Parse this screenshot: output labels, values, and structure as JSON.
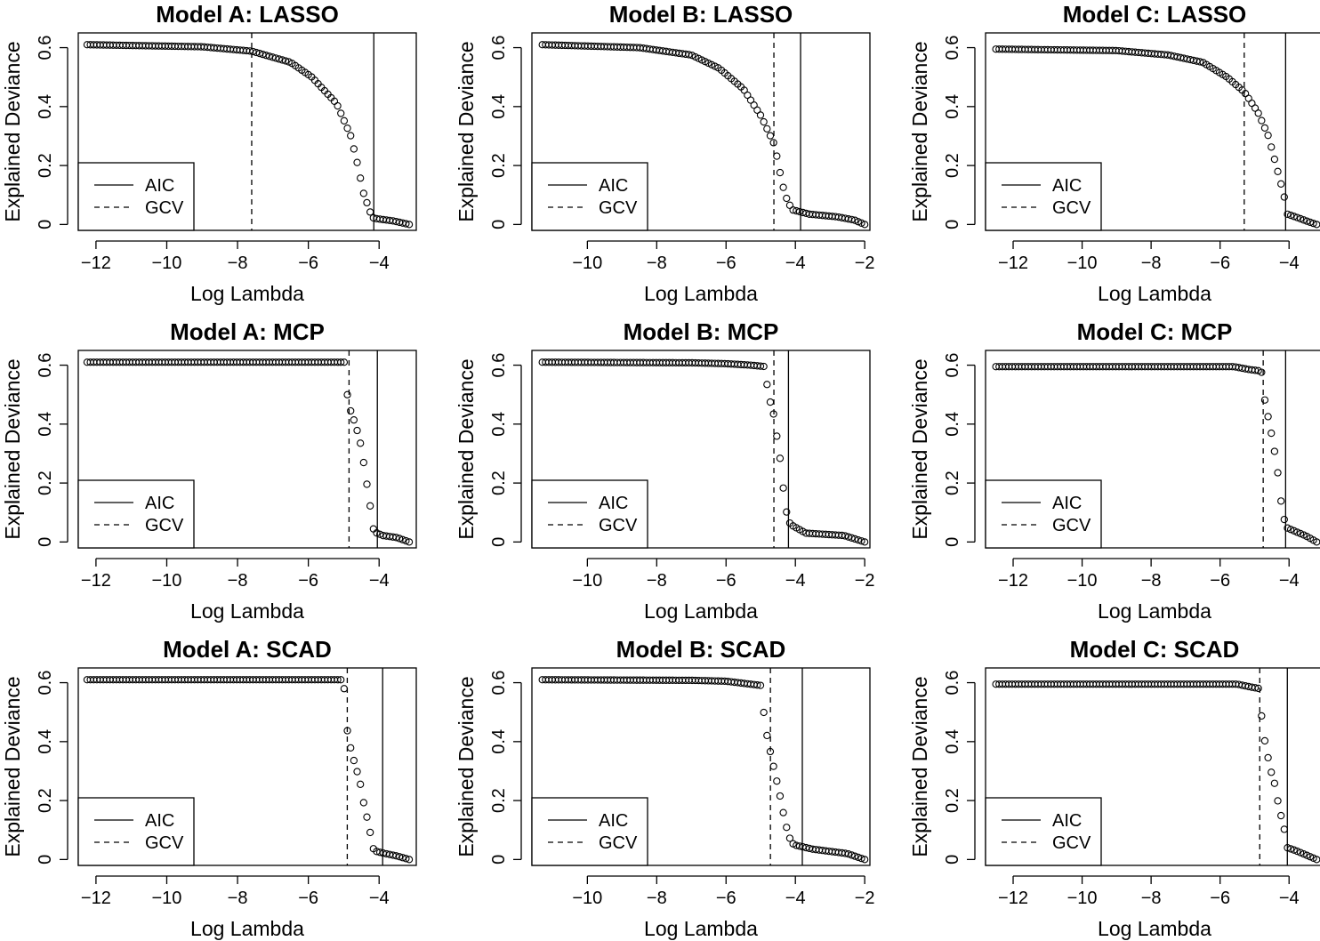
{
  "chart_data": [
    {
      "type": "scatter",
      "title": "Model A:  LASSO",
      "xlabel": "Log Lambda",
      "ylabel": "Explained Deviance",
      "xlim": [
        -12.5,
        -2.95
      ],
      "ylim": [
        -0.02,
        0.65
      ],
      "xticks": [
        -12,
        -10,
        -8,
        -6,
        -4
      ],
      "yticks": [
        0.0,
        0.2,
        0.4,
        0.6
      ],
      "x_range": [
        -12.25,
        -3.15
      ],
      "n_points": 100,
      "curve": [
        [
          -12.25,
          0.61
        ],
        [
          -9.0,
          0.603
        ],
        [
          -7.6,
          0.588
        ],
        [
          -6.5,
          0.55
        ],
        [
          -5.9,
          0.5
        ],
        [
          -5.2,
          0.41
        ],
        [
          -4.8,
          0.3
        ],
        [
          -4.6,
          0.2
        ],
        [
          -4.45,
          0.11
        ],
        [
          -4.2,
          0.024
        ],
        [
          -4.1,
          0.02
        ],
        [
          -3.6,
          0.012
        ],
        [
          -3.15,
          0.0
        ]
      ],
      "aic": -4.15,
      "gcv": -7.6,
      "legend": [
        {
          "label": "AIC",
          "style": "solid"
        },
        {
          "label": "GCV",
          "style": "dashed"
        }
      ],
      "legend_position": "bottom-left"
    },
    {
      "type": "scatter",
      "title": "Model B:  LASSO",
      "xlabel": "Log Lambda",
      "ylabel": "Explained Deviance",
      "xlim": [
        -11.6,
        -1.85
      ],
      "ylim": [
        -0.02,
        0.65
      ],
      "xticks": [
        -10,
        -8,
        -6,
        -4,
        -2
      ],
      "yticks": [
        0.0,
        0.2,
        0.4,
        0.6
      ],
      "x_range": [
        -11.3,
        -2.0
      ],
      "n_points": 100,
      "curve": [
        [
          -11.3,
          0.61
        ],
        [
          -8.5,
          0.6
        ],
        [
          -7.0,
          0.575
        ],
        [
          -6.2,
          0.53
        ],
        [
          -5.5,
          0.46
        ],
        [
          -5.0,
          0.37
        ],
        [
          -4.6,
          0.27
        ],
        [
          -4.45,
          0.18
        ],
        [
          -4.3,
          0.1
        ],
        [
          -4.1,
          0.05
        ],
        [
          -3.6,
          0.035
        ],
        [
          -2.8,
          0.026
        ],
        [
          -2.3,
          0.015
        ],
        [
          -2.0,
          0.0
        ]
      ],
      "aic": -3.85,
      "gcv": -4.62,
      "legend": [
        {
          "label": "AIC",
          "style": "solid"
        },
        {
          "label": "GCV",
          "style": "dashed"
        }
      ],
      "legend_position": "bottom-left"
    },
    {
      "type": "scatter",
      "title": "Model C:  LASSO",
      "xlabel": "Log Lambda",
      "ylabel": "Explained Deviance",
      "xlim": [
        -12.8,
        -3.0
      ],
      "ylim": [
        -0.02,
        0.65
      ],
      "xticks": [
        -12,
        -10,
        -8,
        -6,
        -4
      ],
      "yticks": [
        0.0,
        0.2,
        0.4,
        0.6
      ],
      "x_range": [
        -12.5,
        -3.2
      ],
      "n_points": 100,
      "curve": [
        [
          -12.5,
          0.595
        ],
        [
          -9.0,
          0.59
        ],
        [
          -7.5,
          0.575
        ],
        [
          -6.5,
          0.55
        ],
        [
          -5.8,
          0.5
        ],
        [
          -5.3,
          0.45
        ],
        [
          -4.9,
          0.38
        ],
        [
          -4.6,
          0.3
        ],
        [
          -4.35,
          0.19
        ],
        [
          -4.15,
          0.1
        ],
        [
          -4.05,
          0.035
        ],
        [
          -3.8,
          0.025
        ],
        [
          -3.5,
          0.012
        ],
        [
          -3.2,
          0.0
        ]
      ],
      "aic": -4.1,
      "gcv": -5.3,
      "legend": [
        {
          "label": "AIC",
          "style": "solid"
        },
        {
          "label": "GCV",
          "style": "dashed"
        }
      ],
      "legend_position": "bottom-left"
    },
    {
      "type": "scatter",
      "title": "Model A:  MCP",
      "xlabel": "Log Lambda",
      "ylabel": "Explained Deviance",
      "xlim": [
        -12.5,
        -2.95
      ],
      "ylim": [
        -0.02,
        0.65
      ],
      "xticks": [
        -12,
        -10,
        -8,
        -6,
        -4
      ],
      "yticks": [
        0.0,
        0.2,
        0.4,
        0.6
      ],
      "x_range": [
        -12.25,
        -3.15
      ],
      "n_points": 100,
      "curve": [
        [
          -12.25,
          0.61
        ],
        [
          -4.95,
          0.61
        ],
        [
          -4.92,
          0.52
        ],
        [
          -4.85,
          0.46
        ],
        [
          -4.7,
          0.41
        ],
        [
          -4.55,
          0.35
        ],
        [
          -4.45,
          0.28
        ],
        [
          -4.35,
          0.2
        ],
        [
          -4.25,
          0.12
        ],
        [
          -4.15,
          0.035
        ],
        [
          -3.9,
          0.022
        ],
        [
          -3.5,
          0.015
        ],
        [
          -3.15,
          0.0
        ]
      ],
      "aic": -4.05,
      "gcv": -4.85,
      "legend": [
        {
          "label": "AIC",
          "style": "solid"
        },
        {
          "label": "GCV",
          "style": "dashed"
        }
      ],
      "legend_position": "bottom-left"
    },
    {
      "type": "scatter",
      "title": "Model B:  MCP",
      "xlabel": "Log Lambda",
      "ylabel": "Explained Deviance",
      "xlim": [
        -11.6,
        -1.85
      ],
      "ylim": [
        -0.02,
        0.65
      ],
      "xticks": [
        -10,
        -8,
        -6,
        -4,
        -2
      ],
      "yticks": [
        0.0,
        0.2,
        0.4,
        0.6
      ],
      "x_range": [
        -11.3,
        -2.0
      ],
      "n_points": 100,
      "curve": [
        [
          -11.3,
          0.61
        ],
        [
          -7.0,
          0.608
        ],
        [
          -6.0,
          0.605
        ],
        [
          -5.3,
          0.6
        ],
        [
          -4.85,
          0.595
        ],
        [
          -4.8,
          0.5
        ],
        [
          -4.65,
          0.45
        ],
        [
          -4.5,
          0.33
        ],
        [
          -4.4,
          0.25
        ],
        [
          -4.3,
          0.12
        ],
        [
          -4.15,
          0.06
        ],
        [
          -3.7,
          0.03
        ],
        [
          -2.6,
          0.022
        ],
        [
          -2.0,
          0.0
        ]
      ],
      "aic": -4.2,
      "gcv": -4.62,
      "legend": [
        {
          "label": "AIC",
          "style": "solid"
        },
        {
          "label": "GCV",
          "style": "dashed"
        }
      ],
      "legend_position": "bottom-left"
    },
    {
      "type": "scatter",
      "title": "Model C:  MCP",
      "xlabel": "Log Lambda",
      "ylabel": "Explained Deviance",
      "xlim": [
        -12.8,
        -3.0
      ],
      "ylim": [
        -0.02,
        0.65
      ],
      "xticks": [
        -12,
        -10,
        -8,
        -6,
        -4
      ],
      "yticks": [
        0.0,
        0.2,
        0.4,
        0.6
      ],
      "x_range": [
        -12.5,
        -3.2
      ],
      "n_points": 100,
      "curve": [
        [
          -12.5,
          0.595
        ],
        [
          -5.6,
          0.595
        ],
        [
          -5.15,
          0.585
        ],
        [
          -4.8,
          0.58
        ],
        [
          -4.75,
          0.51
        ],
        [
          -4.65,
          0.45
        ],
        [
          -4.5,
          0.36
        ],
        [
          -4.35,
          0.26
        ],
        [
          -4.25,
          0.15
        ],
        [
          -4.1,
          0.05
        ],
        [
          -3.9,
          0.04
        ],
        [
          -3.5,
          0.02
        ],
        [
          -3.2,
          0.0
        ]
      ],
      "aic": -4.1,
      "gcv": -4.75,
      "legend": [
        {
          "label": "AIC",
          "style": "solid"
        },
        {
          "label": "GCV",
          "style": "dashed"
        }
      ],
      "legend_position": "bottom-left"
    },
    {
      "type": "scatter",
      "title": "Model A:  SCAD",
      "xlabel": "Log Lambda",
      "ylabel": "Explained Deviance",
      "xlim": [
        -12.5,
        -2.95
      ],
      "ylim": [
        -0.02,
        0.65
      ],
      "xticks": [
        -12,
        -10,
        -8,
        -6,
        -4
      ],
      "yticks": [
        0.0,
        0.2,
        0.4,
        0.6
      ],
      "x_range": [
        -12.25,
        -3.15
      ],
      "n_points": 100,
      "curve": [
        [
          -12.25,
          0.61
        ],
        [
          -5.0,
          0.61
        ],
        [
          -4.95,
          0.48
        ],
        [
          -4.85,
          0.4
        ],
        [
          -4.7,
          0.33
        ],
        [
          -4.55,
          0.27
        ],
        [
          -4.45,
          0.2
        ],
        [
          -4.3,
          0.12
        ],
        [
          -4.15,
          0.03
        ],
        [
          -3.9,
          0.022
        ],
        [
          -3.5,
          0.012
        ],
        [
          -3.15,
          0.0
        ]
      ],
      "aic": -3.9,
      "gcv": -4.9,
      "legend": [
        {
          "label": "AIC",
          "style": "solid"
        },
        {
          "label": "GCV",
          "style": "dashed"
        }
      ],
      "legend_position": "bottom-left"
    },
    {
      "type": "scatter",
      "title": "Model B:  SCAD",
      "xlabel": "Log Lambda",
      "ylabel": "Explained Deviance",
      "xlim": [
        -11.6,
        -1.85
      ],
      "ylim": [
        -0.02,
        0.65
      ],
      "xticks": [
        -10,
        -8,
        -6,
        -4,
        -2
      ],
      "yticks": [
        0.0,
        0.2,
        0.4,
        0.6
      ],
      "x_range": [
        -11.3,
        -2.0
      ],
      "n_points": 100,
      "curve": [
        [
          -11.3,
          0.61
        ],
        [
          -7.0,
          0.608
        ],
        [
          -6.0,
          0.605
        ],
        [
          -5.3,
          0.595
        ],
        [
          -4.95,
          0.59
        ],
        [
          -4.9,
          0.47
        ],
        [
          -4.75,
          0.38
        ],
        [
          -4.6,
          0.3
        ],
        [
          -4.45,
          0.22
        ],
        [
          -4.35,
          0.16
        ],
        [
          -4.2,
          0.08
        ],
        [
          -4.05,
          0.05
        ],
        [
          -3.5,
          0.035
        ],
        [
          -2.5,
          0.02
        ],
        [
          -2.0,
          0.0
        ]
      ],
      "aic": -3.8,
      "gcv": -4.72,
      "legend": [
        {
          "label": "AIC",
          "style": "solid"
        },
        {
          "label": "GCV",
          "style": "dashed"
        }
      ],
      "legend_position": "bottom-left"
    },
    {
      "type": "scatter",
      "title": "Model C:  SCAD",
      "xlabel": "Log Lambda",
      "ylabel": "Explained Deviance",
      "xlim": [
        -12.8,
        -3.0
      ],
      "ylim": [
        -0.02,
        0.65
      ],
      "xticks": [
        -12,
        -10,
        -8,
        -6,
        -4
      ],
      "yticks": [
        0.0,
        0.2,
        0.4,
        0.6
      ],
      "x_range": [
        -12.5,
        -3.2
      ],
      "n_points": 100,
      "curve": [
        [
          -12.5,
          0.595
        ],
        [
          -5.5,
          0.595
        ],
        [
          -5.1,
          0.585
        ],
        [
          -4.85,
          0.58
        ],
        [
          -4.8,
          0.49
        ],
        [
          -4.7,
          0.4
        ],
        [
          -4.55,
          0.31
        ],
        [
          -4.4,
          0.25
        ],
        [
          -4.3,
          0.18
        ],
        [
          -4.15,
          0.11
        ],
        [
          -4.05,
          0.04
        ],
        [
          -3.8,
          0.03
        ],
        [
          -3.5,
          0.015
        ],
        [
          -3.2,
          0.0
        ]
      ],
      "aic": -4.05,
      "gcv": -4.85,
      "legend": [
        {
          "label": "AIC",
          "style": "solid"
        },
        {
          "label": "GCV",
          "style": "dashed"
        }
      ],
      "legend_position": "bottom-left"
    }
  ]
}
